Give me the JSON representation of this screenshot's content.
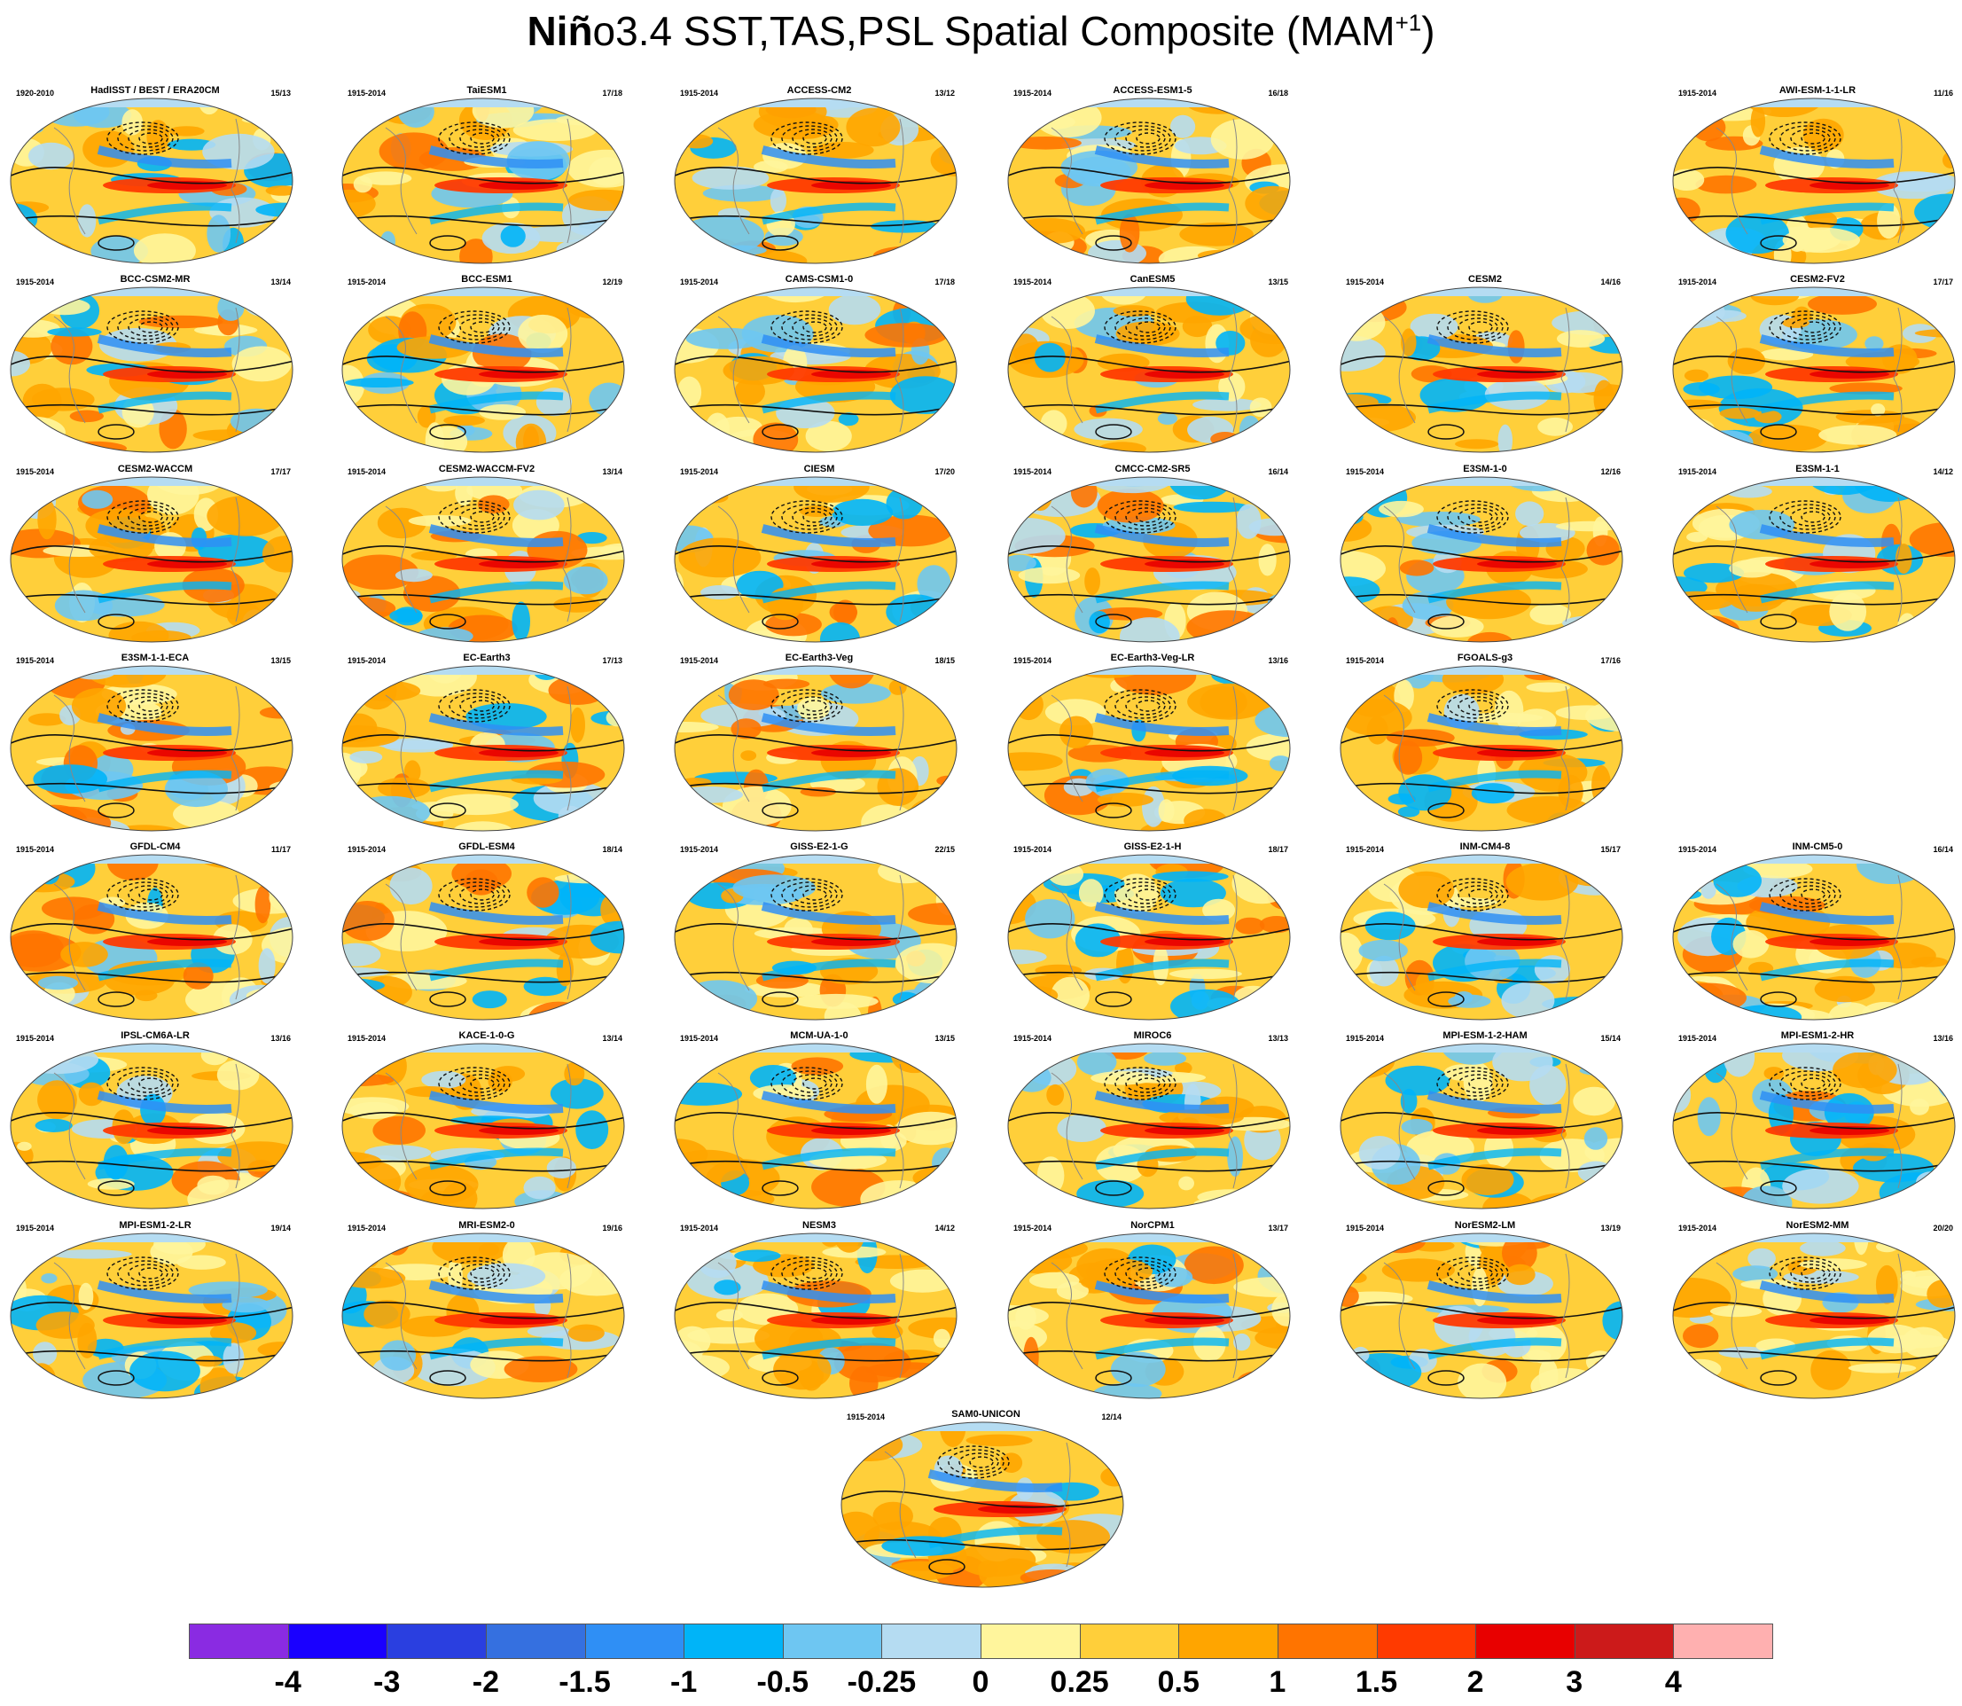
{
  "title": {
    "bold_part": "Niñ",
    "rest": "o3.4 SST,TAS,PSL Spatial Composite (MAM",
    "superscript": "+1",
    "closing": ")"
  },
  "panels": [
    {
      "name": "HadISST / BEST / ERA20CM",
      "years": "1920-2010",
      "count": "15/13",
      "col": 0,
      "row": 0
    },
    {
      "name": "TaiESM1",
      "years": "1915-2014",
      "count": "17/18",
      "col": 1,
      "row": 0
    },
    {
      "name": "ACCESS-CM2",
      "years": "1915-2014",
      "count": "13/12",
      "col": 2,
      "row": 0
    },
    {
      "name": "ACCESS-ESM1-5",
      "years": "1915-2014",
      "count": "16/18",
      "col": 3,
      "row": 0
    },
    {
      "name": "AWI-ESM-1-1-LR",
      "years": "1915-2014",
      "count": "11/16",
      "col": 5,
      "row": 0
    },
    {
      "name": "BCC-CSM2-MR",
      "years": "1915-2014",
      "count": "13/14",
      "col": 0,
      "row": 1
    },
    {
      "name": "BCC-ESM1",
      "years": "1915-2014",
      "count": "12/19",
      "col": 1,
      "row": 1
    },
    {
      "name": "CAMS-CSM1-0",
      "years": "1915-2014",
      "count": "17/18",
      "col": 2,
      "row": 1
    },
    {
      "name": "CanESM5",
      "years": "1915-2014",
      "count": "13/15",
      "col": 3,
      "row": 1
    },
    {
      "name": "CESM2",
      "years": "1915-2014",
      "count": "14/16",
      "col": 4,
      "row": 1
    },
    {
      "name": "CESM2-FV2",
      "years": "1915-2014",
      "count": "17/17",
      "col": 5,
      "row": 1
    },
    {
      "name": "CESM2-WACCM",
      "years": "1915-2014",
      "count": "17/17",
      "col": 0,
      "row": 2
    },
    {
      "name": "CESM2-WACCM-FV2",
      "years": "1915-2014",
      "count": "13/14",
      "col": 1,
      "row": 2
    },
    {
      "name": "CIESM",
      "years": "1915-2014",
      "count": "17/20",
      "col": 2,
      "row": 2
    },
    {
      "name": "CMCC-CM2-SR5",
      "years": "1915-2014",
      "count": "16/14",
      "col": 3,
      "row": 2
    },
    {
      "name": "E3SM-1-0",
      "years": "1915-2014",
      "count": "12/16",
      "col": 4,
      "row": 2
    },
    {
      "name": "E3SM-1-1",
      "years": "1915-2014",
      "count": "14/12",
      "col": 5,
      "row": 2
    },
    {
      "name": "E3SM-1-1-ECA",
      "years": "1915-2014",
      "count": "13/15",
      "col": 0,
      "row": 3
    },
    {
      "name": "EC-Earth3",
      "years": "1915-2014",
      "count": "17/13",
      "col": 1,
      "row": 3
    },
    {
      "name": "EC-Earth3-Veg",
      "years": "1915-2014",
      "count": "18/15",
      "col": 2,
      "row": 3
    },
    {
      "name": "EC-Earth3-Veg-LR",
      "years": "1915-2014",
      "count": "13/16",
      "col": 3,
      "row": 3
    },
    {
      "name": "FGOALS-g3",
      "years": "1915-2014",
      "count": "17/16",
      "col": 4,
      "row": 3
    },
    {
      "name": "GFDL-CM4",
      "years": "1915-2014",
      "count": "11/17",
      "col": 0,
      "row": 4
    },
    {
      "name": "GFDL-ESM4",
      "years": "1915-2014",
      "count": "18/14",
      "col": 1,
      "row": 4
    },
    {
      "name": "GISS-E2-1-G",
      "years": "1915-2014",
      "count": "22/15",
      "col": 2,
      "row": 4
    },
    {
      "name": "GISS-E2-1-H",
      "years": "1915-2014",
      "count": "18/17",
      "col": 3,
      "row": 4
    },
    {
      "name": "INM-CM4-8",
      "years": "1915-2014",
      "count": "15/17",
      "col": 4,
      "row": 4
    },
    {
      "name": "INM-CM5-0",
      "years": "1915-2014",
      "count": "16/14",
      "col": 5,
      "row": 4
    },
    {
      "name": "IPSL-CM6A-LR",
      "years": "1915-2014",
      "count": "13/16",
      "col": 0,
      "row": 5
    },
    {
      "name": "KACE-1-0-G",
      "years": "1915-2014",
      "count": "13/14",
      "col": 1,
      "row": 5
    },
    {
      "name": "MCM-UA-1-0",
      "years": "1915-2014",
      "count": "13/15",
      "col": 2,
      "row": 5
    },
    {
      "name": "MIROC6",
      "years": "1915-2014",
      "count": "13/13",
      "col": 3,
      "row": 5
    },
    {
      "name": "MPI-ESM-1-2-HAM",
      "years": "1915-2014",
      "count": "15/14",
      "col": 4,
      "row": 5
    },
    {
      "name": "MPI-ESM1-2-HR",
      "years": "1915-2014",
      "count": "13/16",
      "col": 5,
      "row": 5
    },
    {
      "name": "MPI-ESM1-2-LR",
      "years": "1915-2014",
      "count": "19/14",
      "col": 0,
      "row": 6
    },
    {
      "name": "MRI-ESM2-0",
      "years": "1915-2014",
      "count": "19/16",
      "col": 1,
      "row": 6
    },
    {
      "name": "NESM3",
      "years": "1915-2014",
      "count": "14/12",
      "col": 2,
      "row": 6
    },
    {
      "name": "NorCPM1",
      "years": "1915-2014",
      "count": "13/17",
      "col": 3,
      "row": 6
    },
    {
      "name": "NorESM2-LM",
      "years": "1915-2014",
      "count": "13/19",
      "col": 4,
      "row": 6
    },
    {
      "name": "NorESM2-MM",
      "years": "1915-2014",
      "count": "20/20",
      "col": 5,
      "row": 6
    },
    {
      "name": "SAM0-UNICON",
      "years": "1915-2014",
      "count": "12/14",
      "col": 2.5,
      "row": 7
    }
  ],
  "colorbar": {
    "colors": [
      "#8a2be2",
      "#1a00ff",
      "#2a3fe0",
      "#3570e0",
      "#2f8ff5",
      "#00b4f8",
      "#6ec6f2",
      "#b5dcf2",
      "#fff59c",
      "#ffcf3a",
      "#ffa500",
      "#ff7400",
      "#ff3a00",
      "#e80000",
      "#cc1a1a",
      "#ffb0b0"
    ],
    "labels": [
      "-4",
      "-3",
      "-2",
      "-1.5",
      "-1",
      "-0.5",
      "-0.25",
      "0",
      "0.25",
      "0.5",
      "1",
      "1.5",
      "2",
      "3",
      "4"
    ]
  }
}
